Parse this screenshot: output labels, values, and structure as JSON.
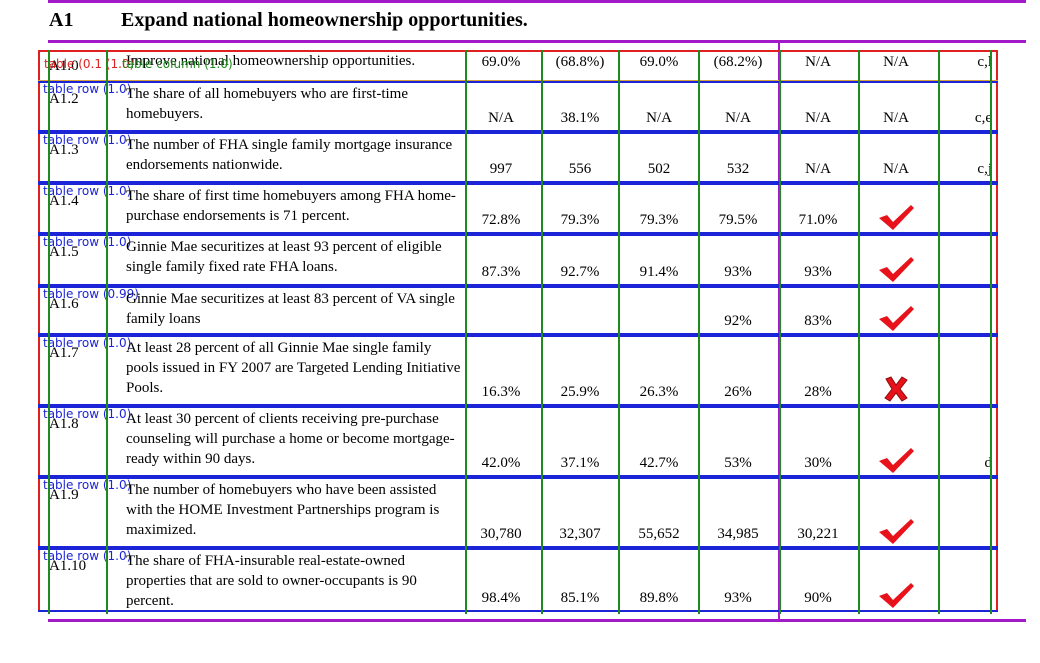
{
  "heading": {
    "id": "A1",
    "title": "Expand national homeownership opportunities."
  },
  "overlay": {
    "table_tag": "table (0.1 (1.0)",
    "column_tag": "table column (1.0)"
  },
  "rows": [
    {
      "id": "A1.0",
      "desc": "Improve national homeownership opportunities.",
      "vals": [
        "69.0%",
        "(68.8%)",
        "69.0%",
        "(68.2%)",
        "N/A"
      ],
      "status": "N/A",
      "note": "c,l",
      "tag": ""
    },
    {
      "id": "A1.2",
      "desc": "The share of all homebuyers who are first-time homebuyers.",
      "vals": [
        "N/A",
        "38.1%",
        "N/A",
        "N/A",
        "N/A"
      ],
      "status": "N/A",
      "note": "c,e",
      "tag": "table row (1.0)"
    },
    {
      "id": "A1.3",
      "desc": "The number of FHA single family mortgage insurance endorsements nationwide.",
      "vals": [
        "997",
        "556",
        "502",
        "532",
        "N/A"
      ],
      "status": "N/A",
      "note": "c,j",
      "tag": "table row (1.0)"
    },
    {
      "id": "A1.4",
      "desc": "The share of first time homebuyers among FHA home-purchase endorsements is 71 percent.",
      "vals": [
        "72.8%",
        "79.3%",
        "79.3%",
        "79.5%",
        "71.0%"
      ],
      "status": "check",
      "note": "",
      "tag": "table row (1.0)"
    },
    {
      "id": "A1.5",
      "desc": "Ginnie Mae securitizes at least 93 percent of eligible single family fixed rate FHA loans.",
      "vals": [
        "87.3%",
        "92.7%",
        "91.4%",
        "93%",
        "93%"
      ],
      "status": "check",
      "note": "",
      "tag": "table row (1.0)"
    },
    {
      "id": "A1.6",
      "desc": "Ginnie Mae securitizes at least 83 percent of VA single family loans",
      "vals": [
        "",
        "",
        "",
        "92%",
        "83%"
      ],
      "status": "check",
      "note": "",
      "tag": "table row (0.99)"
    },
    {
      "id": "A1.7",
      "desc": "At least 28 percent of all Ginnie Mae single family pools issued in FY 2007 are Targeted Lending Initiative Pools.",
      "vals": [
        "16.3%",
        "25.9%",
        "26.3%",
        "26%",
        "28%"
      ],
      "status": "cross",
      "note": "",
      "tag": "table row (1.0)"
    },
    {
      "id": "A1.8",
      "desc": "At least 30 percent of clients receiving pre-purchase counseling will purchase a home or become mortgage-ready within 90 days.",
      "vals": [
        "42.0%",
        "37.1%",
        "42.7%",
        "53%",
        "30%"
      ],
      "status": "check",
      "note": "d",
      "tag": "table row (1.0)"
    },
    {
      "id": "A1.9",
      "desc": "The number of homebuyers who have been assisted with the HOME Investment Partnerships program is maximized.",
      "vals": [
        "30,780",
        "32,307",
        "55,652",
        "34,985",
        "30,221"
      ],
      "status": "check",
      "note": "",
      "tag": "table row (1.0)"
    },
    {
      "id": "A1.10",
      "desc": "The share of FHA-insurable real-estate-owned properties that are sold to owner-occupants is 90 percent.",
      "vals": [
        "98.4%",
        "85.1%",
        "89.8%",
        "93%",
        "90%"
      ],
      "status": "check",
      "note": "",
      "tag": "table row (1.0)"
    }
  ],
  "colors": {
    "frame": "#a31bc9",
    "row_border": "#1b24d6",
    "col_border": "#1f8a1f",
    "table_border": "#e02020",
    "check": "#e8121a"
  }
}
